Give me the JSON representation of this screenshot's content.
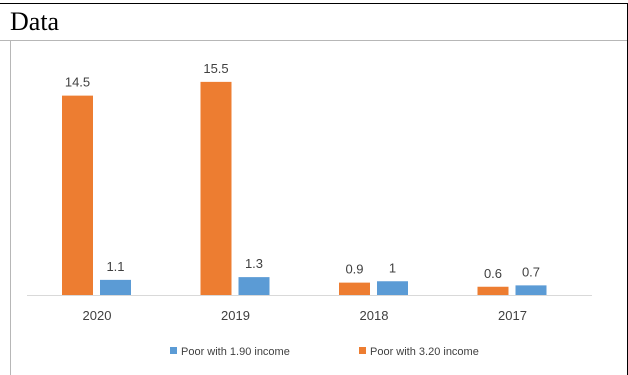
{
  "page": {
    "heading": "Data"
  },
  "chart_data": {
    "type": "bar",
    "title": "",
    "xlabel": "",
    "ylabel": "",
    "categories": [
      "2020",
      "2019",
      "2018",
      "2017"
    ],
    "series": [
      {
        "name": "Poor with 3.20 income",
        "color": "#ED7D31",
        "values": [
          14.5,
          15.5,
          0.9,
          0.6
        ]
      },
      {
        "name": "Poor with 1.90 income",
        "color": "#5B9BD5",
        "values": [
          1.1,
          1.3,
          1.0,
          0.7
        ]
      }
    ],
    "value_labels": {
      "Poor with 3.20 income": [
        "14.5",
        "15.5",
        "0.9",
        "0.6"
      ],
      "Poor with 1.90 income": [
        "1.1",
        "1.3",
        "1",
        "0.7"
      ]
    },
    "legend_order": [
      "Poor with 1.90 income",
      "Poor with 3.20 income"
    ],
    "legend_position": "bottom",
    "ylim": [
      0,
      16
    ],
    "grid": false,
    "y_axis_visible": false
  }
}
